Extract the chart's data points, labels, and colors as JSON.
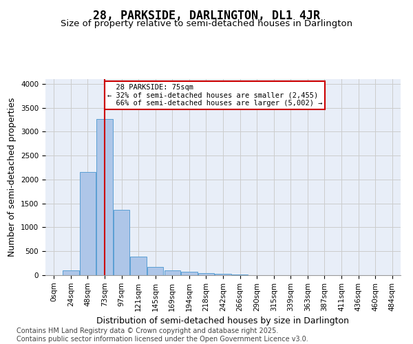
{
  "title": "28, PARKSIDE, DARLINGTON, DL1 4JR",
  "subtitle": "Size of property relative to semi-detached houses in Darlington",
  "xlabel": "Distribution of semi-detached houses by size in Darlington",
  "ylabel": "Number of semi-detached properties",
  "bin_labels": [
    "0sqm",
    "24sqm",
    "48sqm",
    "73sqm",
    "97sqm",
    "121sqm",
    "145sqm",
    "169sqm",
    "194sqm",
    "218sqm",
    "242sqm",
    "266sqm",
    "290sqm",
    "315sqm",
    "339sqm",
    "363sqm",
    "387sqm",
    "411sqm",
    "436sqm",
    "460sqm",
    "484sqm"
  ],
  "bar_values": [
    0,
    105,
    2155,
    3260,
    1360,
    395,
    175,
    100,
    65,
    50,
    25,
    10,
    5,
    3,
    2,
    1,
    1,
    0,
    0,
    0,
    0
  ],
  "bar_color": "#aec6e8",
  "bar_edgecolor": "#5a9fd4",
  "property_label": "28 PARKSIDE: 75sqm",
  "pct_smaller": 32,
  "pct_larger": 66,
  "n_smaller": 2455,
  "n_larger": 5002,
  "annotation_edgecolor": "#cc0000",
  "vline_color": "#cc0000",
  "vline_x": 3.0,
  "ylim": [
    0,
    4100
  ],
  "yticks": [
    0,
    500,
    1000,
    1500,
    2000,
    2500,
    3000,
    3500,
    4000
  ],
  "grid_color": "#cccccc",
  "footnote1": "Contains HM Land Registry data © Crown copyright and database right 2025.",
  "footnote2": "Contains public sector information licensed under the Open Government Licence v3.0.",
  "background_color": "#e8eef8",
  "title_fontsize": 12,
  "subtitle_fontsize": 9.5,
  "axis_fontsize": 9,
  "tick_fontsize": 7.5,
  "footnote_fontsize": 7
}
